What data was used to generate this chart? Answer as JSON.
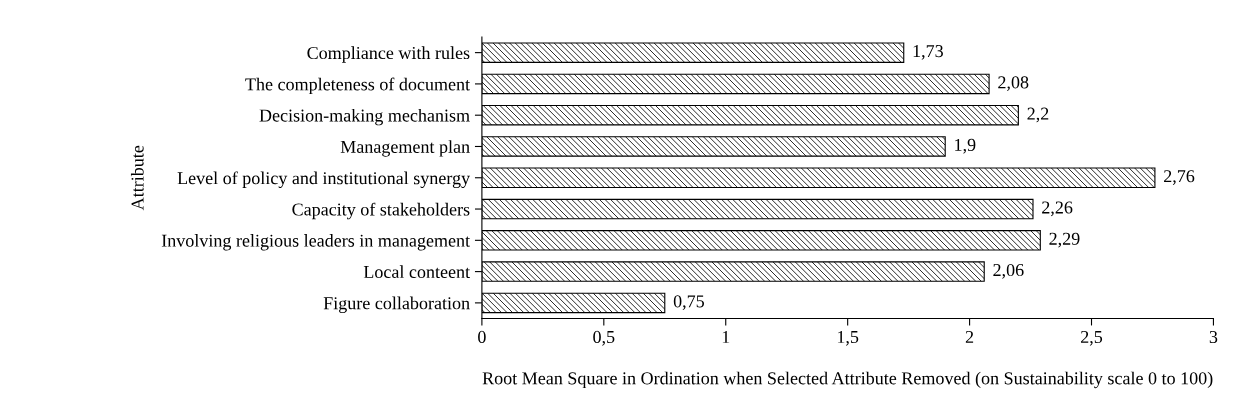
{
  "chart_data": {
    "type": "bar",
    "orientation": "horizontal",
    "xlabel": "Root Mean Square in Ordination when Selected Attribute Removed (on Sustainability scale 0 to 100)",
    "ylabel": "Attribute",
    "categories": [
      "Compliance with rules",
      "The completeness of document",
      "Decision-making mechanism",
      "Management plan",
      "Level of policy and institutional synergy",
      "Capacity of stakeholders",
      "Involving religious leaders in management",
      "Local conteent",
      "Figure collaboration"
    ],
    "values": [
      1.73,
      2.08,
      2.2,
      1.9,
      2.76,
      2.26,
      2.29,
      2.06,
      0.75
    ],
    "value_labels": [
      "1,73",
      "2,08",
      "2,2",
      "1,9",
      "2,76",
      "2,26",
      "2,29",
      "2,06",
      "0,75"
    ],
    "xlim": [
      0,
      3
    ],
    "xticks": [
      0,
      {
        "value": 0.5,
        "label": "0,5"
      },
      1,
      {
        "value": 1.5,
        "label": "1,5"
      },
      2,
      {
        "value": 2.5,
        "label": "2,5"
      },
      3
    ],
    "grid": false
  }
}
